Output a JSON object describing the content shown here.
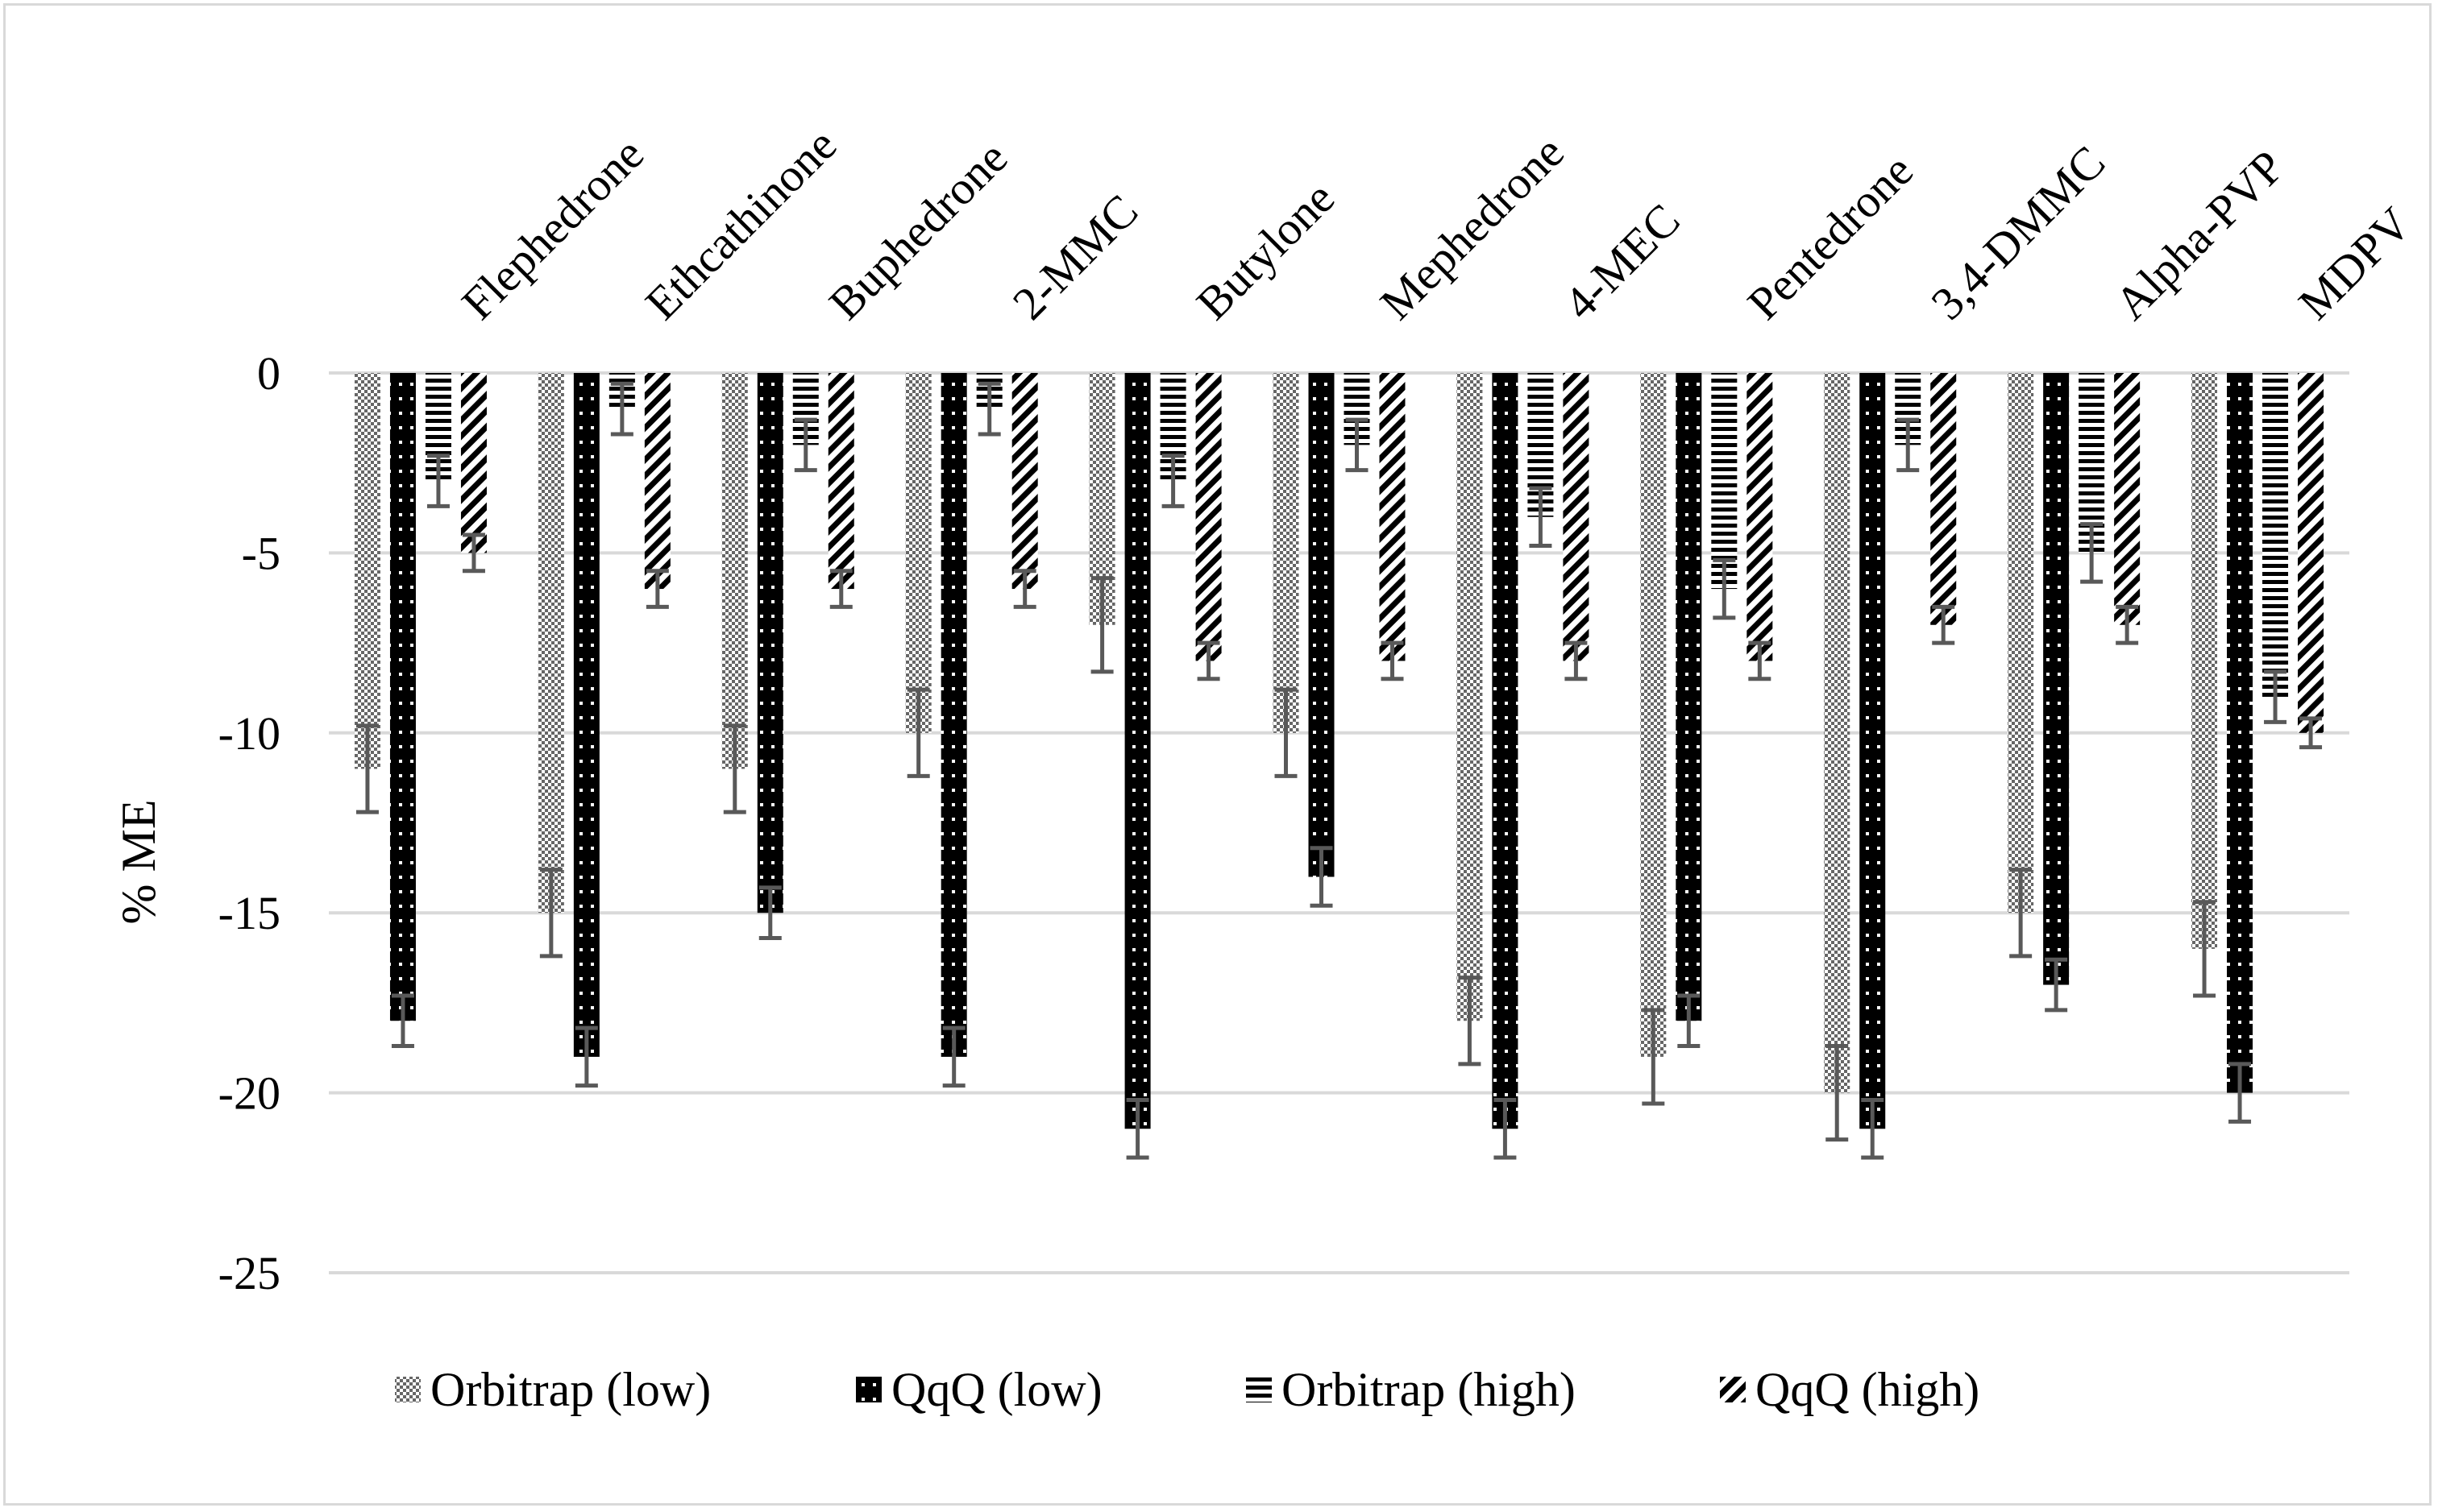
{
  "chart_data": {
    "type": "bar",
    "title": "",
    "xlabel": "",
    "ylabel": "% ME",
    "ylim": [
      -25,
      0
    ],
    "yticks": [
      0,
      -5,
      -10,
      -15,
      -20,
      -25
    ],
    "grid": true,
    "legend_position": "bottom",
    "categories": [
      "Flephedrone",
      "Ethcathinone",
      "Buphedrone",
      "2-MMC",
      "Butylone",
      "Mephedrone",
      "4-MEC",
      "Pentedrone",
      "3,4-DMMC",
      "Alpha-PVP",
      "MDPV"
    ],
    "series": [
      {
        "name": "Orbitrap (low)",
        "pattern": "checker",
        "values": [
          -11,
          -15,
          -11,
          -10,
          -7,
          -10,
          -18,
          -19,
          -20,
          -15,
          -16
        ],
        "errors": [
          1.2,
          1.2,
          1.2,
          1.2,
          1.3,
          1.2,
          1.2,
          1.3,
          1.3,
          1.2,
          1.3
        ]
      },
      {
        "name": "QqQ (low)",
        "pattern": "dots",
        "values": [
          -18,
          -19,
          -15,
          -19,
          -21,
          -14,
          -21,
          -18,
          -21,
          -17,
          -20
        ],
        "errors": [
          0.7,
          0.8,
          0.7,
          0.8,
          0.8,
          0.8,
          0.8,
          0.7,
          0.8,
          0.7,
          0.8
        ]
      },
      {
        "name": "Orbitrap (high)",
        "pattern": "hlines",
        "values": [
          -3,
          -1,
          -2,
          -1,
          -3,
          -2,
          -4,
          -6,
          -2,
          -5,
          -9
        ],
        "errors": [
          0.7,
          0.7,
          0.7,
          0.7,
          0.7,
          0.7,
          0.8,
          0.8,
          0.7,
          0.8,
          0.7
        ]
      },
      {
        "name": "QqQ (high)",
        "pattern": "diag",
        "values": [
          -5,
          -6,
          -6,
          -6,
          -8,
          -8,
          -8,
          -8,
          -7,
          -7,
          -10
        ],
        "errors": [
          0.5,
          0.5,
          0.5,
          0.5,
          0.5,
          0.5,
          0.5,
          0.5,
          0.5,
          0.5,
          0.4
        ]
      }
    ],
    "colors": {
      "bar": "#000000",
      "grid": "#d9d9d9",
      "errorbar": "#595959",
      "frame": "#d9d9d9"
    }
  }
}
